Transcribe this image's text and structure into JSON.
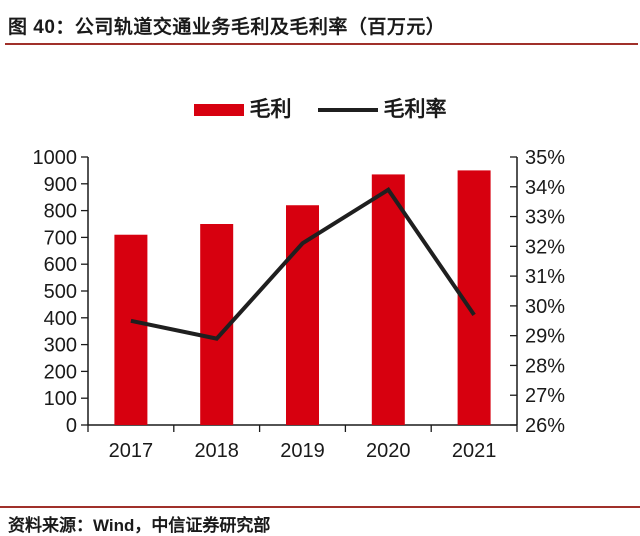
{
  "header": {
    "title": "图 40：公司轨道交通业务毛利及毛利率（百万元）"
  },
  "legend": {
    "items": [
      {
        "label": "毛利",
        "type": "bar"
      },
      {
        "label": "毛利率",
        "type": "line"
      }
    ]
  },
  "footer": {
    "source": "资料来源：Wind，中信证券研究部"
  },
  "colors": {
    "bar": "#d7000f",
    "line": "#1f1f1f",
    "rule": "#a0302a",
    "axis": "#1a1a1a",
    "text": "#1a1a1a"
  },
  "chart_data": {
    "type": "bar",
    "subtype": "combo-bar-line",
    "title": "公司轨道交通业务毛利及毛利率（百万元）",
    "categories": [
      "2017",
      "2018",
      "2019",
      "2020",
      "2021"
    ],
    "series": [
      {
        "name": "毛利",
        "type": "bar",
        "axis": "left",
        "values": [
          710,
          750,
          820,
          935,
          950
        ]
      },
      {
        "name": "毛利率",
        "type": "line",
        "axis": "right",
        "unit": "%",
        "values": [
          29.5,
          28.9,
          32.1,
          33.9,
          29.7
        ]
      }
    ],
    "left_axis": {
      "min": 0,
      "max": 1000,
      "step": 100
    },
    "right_axis": {
      "min": 26,
      "max": 35,
      "step": 1,
      "suffix": "%"
    },
    "legend_position": "top",
    "grid": false
  }
}
